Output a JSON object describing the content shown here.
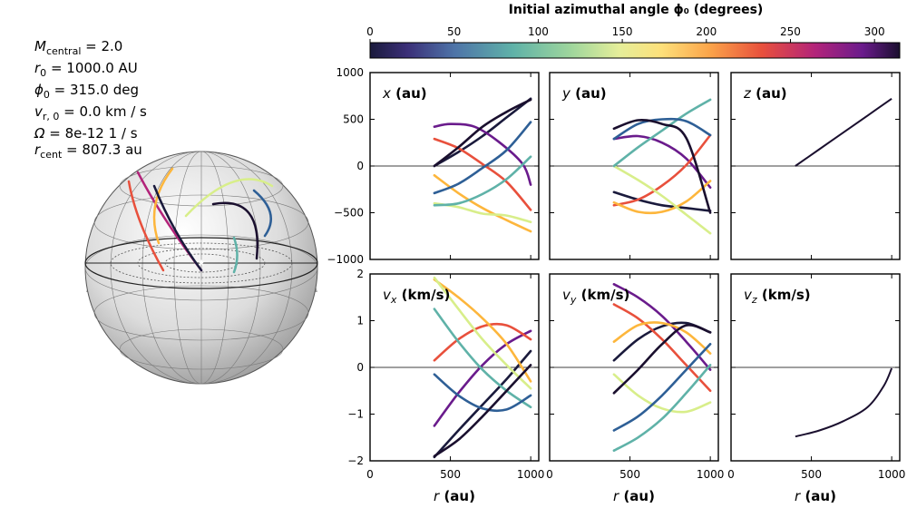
{
  "colorbar": {
    "title": "Initial azimuthal angle ϕ₀ (degrees)",
    "vmin": 0,
    "vmax": 315,
    "ticks": [
      0,
      50,
      100,
      150,
      200,
      250,
      300
    ]
  },
  "params": [
    {
      "sym": "M",
      "sub": "central",
      "rest": " = 2.0"
    },
    {
      "sym": "r",
      "sub": "0",
      "rest": " = 1000.0 AU"
    },
    {
      "sym": "ϕ",
      "sub": "0",
      "rest": " = 315.0 deg"
    },
    {
      "sym": "v",
      "sub": "r, 0",
      "rest": " = 0.0 km / s"
    },
    {
      "sym": "Ω",
      "sub": "",
      "rest": " = 8e-12 1 / s"
    },
    {
      "sym": "r",
      "sub": "cent",
      "rest": " = 807.3 au"
    }
  ],
  "xaxis": {
    "label_sym": "r",
    "label_unit": " (au)",
    "range": [
      0,
      1050
    ],
    "ticks": [
      0,
      500,
      1000
    ]
  },
  "chart_data": {
    "type": "line",
    "panels": [
      {
        "id": "x",
        "sym": "x",
        "sub": "",
        "unit": " (au)",
        "ylim": [
          -1000,
          1000
        ],
        "yticks": [
          -1000,
          -500,
          0,
          500,
          1000
        ],
        "row": 0,
        "col": 0
      },
      {
        "id": "y",
        "sym": "y",
        "sub": "",
        "unit": " (au)",
        "ylim": [
          -1000,
          1000
        ],
        "yticks": [
          -1000,
          -500,
          0,
          500,
          1000
        ],
        "row": 0,
        "col": 1
      },
      {
        "id": "z",
        "sym": "z",
        "sub": "",
        "unit": " (au)",
        "ylim": [
          -1000,
          1000
        ],
        "yticks": [
          -1000,
          -500,
          0,
          500,
          1000
        ],
        "row": 0,
        "col": 2
      },
      {
        "id": "vx",
        "sym": "v",
        "sub": "x",
        "unit": " (km/s)",
        "ylim": [
          -2,
          2
        ],
        "yticks": [
          -2,
          -1,
          0,
          1,
          2
        ],
        "row": 1,
        "col": 0
      },
      {
        "id": "vy",
        "sym": "v",
        "sub": "y",
        "unit": " (km/s)",
        "ylim": [
          -2,
          2
        ],
        "yticks": [
          -2,
          -1,
          0,
          1,
          2
        ],
        "row": 1,
        "col": 1
      },
      {
        "id": "vz",
        "sym": "v",
        "sub": "z",
        "unit": " (km/s)",
        "ylim": [
          -2,
          2
        ],
        "yticks": [
          -2,
          -1,
          0,
          1,
          2
        ],
        "row": 1,
        "col": 2
      }
    ],
    "r_range": [
      400,
      1000
    ],
    "phi0_deg": [
      0,
      45,
      90,
      135,
      180,
      225,
      270,
      315
    ],
    "series": [
      {
        "phi0": 0,
        "color": "#1a1a3c",
        "x": [
          [
            400,
            0
          ],
          [
            550,
            150
          ],
          [
            700,
            320
          ],
          [
            850,
            520
          ],
          [
            1000,
            720
          ]
        ],
        "y": [
          [
            400,
            -280
          ],
          [
            550,
            -360
          ],
          [
            700,
            -420
          ],
          [
            850,
            -450
          ],
          [
            1000,
            -480
          ]
        ],
        "vx": [
          [
            400,
            -1.92
          ],
          [
            550,
            -1.35
          ],
          [
            700,
            -0.8
          ],
          [
            850,
            -0.25
          ],
          [
            1000,
            0.35
          ]
        ],
        "vy": [
          [
            400,
            0.15
          ],
          [
            550,
            0.6
          ],
          [
            700,
            0.88
          ],
          [
            850,
            0.95
          ],
          [
            1000,
            0.75
          ]
        ]
      },
      {
        "phi0": 45,
        "color": "#6a1b8c",
        "x": [
          [
            400,
            420
          ],
          [
            500,
            450
          ],
          [
            650,
            420
          ],
          [
            800,
            260
          ],
          [
            950,
            20
          ],
          [
            1000,
            -200
          ]
        ],
        "y": [
          [
            400,
            290
          ],
          [
            550,
            320
          ],
          [
            700,
            250
          ],
          [
            850,
            80
          ],
          [
            1000,
            -230
          ]
        ],
        "vx": [
          [
            400,
            -1.25
          ],
          [
            550,
            -0.55
          ],
          [
            700,
            0.05
          ],
          [
            850,
            0.5
          ],
          [
            1000,
            0.78
          ]
        ],
        "vy": [
          [
            400,
            1.78
          ],
          [
            550,
            1.5
          ],
          [
            700,
            1.1
          ],
          [
            850,
            0.55
          ],
          [
            1000,
            -0.05
          ]
        ]
      },
      {
        "phi0": 90,
        "color": "#e8503c",
        "x": [
          [
            400,
            290
          ],
          [
            550,
            190
          ],
          [
            700,
            20
          ],
          [
            850,
            -170
          ],
          [
            1000,
            -470
          ]
        ],
        "y": [
          [
            400,
            -420
          ],
          [
            550,
            -360
          ],
          [
            700,
            -210
          ],
          [
            850,
            10
          ],
          [
            1000,
            330
          ]
        ],
        "vx": [
          [
            400,
            0.15
          ],
          [
            550,
            0.6
          ],
          [
            700,
            0.88
          ],
          [
            850,
            0.9
          ],
          [
            1000,
            0.6
          ]
        ],
        "vy": [
          [
            400,
            1.35
          ],
          [
            550,
            1.05
          ],
          [
            700,
            0.6
          ],
          [
            850,
            0.05
          ],
          [
            1000,
            -0.5
          ]
        ]
      },
      {
        "phi0": 135,
        "color": "#fdb63c",
        "x": [
          [
            400,
            -100
          ],
          [
            550,
            -290
          ],
          [
            700,
            -450
          ],
          [
            850,
            -580
          ],
          [
            1000,
            -700
          ]
        ],
        "y": [
          [
            400,
            -390
          ],
          [
            550,
            -490
          ],
          [
            700,
            -490
          ],
          [
            850,
            -380
          ],
          [
            1000,
            -160
          ]
        ],
        "vx": [
          [
            400,
            1.88
          ],
          [
            550,
            1.5
          ],
          [
            700,
            1.05
          ],
          [
            850,
            0.5
          ],
          [
            1000,
            -0.3
          ]
        ],
        "vy": [
          [
            400,
            0.55
          ],
          [
            550,
            0.9
          ],
          [
            700,
            0.95
          ],
          [
            850,
            0.75
          ],
          [
            1000,
            0.3
          ]
        ]
      },
      {
        "phi0": 180,
        "color": "#d8ee8a",
        "x": [
          [
            400,
            -400
          ],
          [
            550,
            -440
          ],
          [
            700,
            -510
          ],
          [
            850,
            -530
          ],
          [
            1000,
            -600
          ]
        ],
        "y": [
          [
            400,
            0
          ],
          [
            550,
            -150
          ],
          [
            700,
            -320
          ],
          [
            850,
            -520
          ],
          [
            1000,
            -720
          ]
        ],
        "vx": [
          [
            400,
            1.92
          ],
          [
            550,
            1.25
          ],
          [
            700,
            0.6
          ],
          [
            850,
            0.05
          ],
          [
            1000,
            -0.45
          ]
        ],
        "vy": [
          [
            400,
            -0.15
          ],
          [
            550,
            -0.6
          ],
          [
            700,
            -0.88
          ],
          [
            850,
            -0.95
          ],
          [
            1000,
            -0.75
          ]
        ]
      },
      {
        "phi0": 225,
        "color": "#5fb2a8",
        "x": [
          [
            400,
            -420
          ],
          [
            550,
            -400
          ],
          [
            700,
            -300
          ],
          [
            850,
            -140
          ],
          [
            1000,
            100
          ]
        ],
        "y": [
          [
            400,
            0
          ],
          [
            550,
            200
          ],
          [
            700,
            380
          ],
          [
            850,
            560
          ],
          [
            1000,
            710
          ]
        ],
        "vx": [
          [
            400,
            1.25
          ],
          [
            550,
            0.55
          ],
          [
            700,
            -0.05
          ],
          [
            850,
            -0.5
          ],
          [
            1000,
            -0.85
          ]
        ],
        "vy": [
          [
            400,
            -1.78
          ],
          [
            550,
            -1.5
          ],
          [
            700,
            -1.1
          ],
          [
            850,
            -0.55
          ],
          [
            1000,
            0.05
          ]
        ]
      },
      {
        "phi0": 270,
        "color": "#2e5f96",
        "x": [
          [
            400,
            -290
          ],
          [
            550,
            -190
          ],
          [
            700,
            -20
          ],
          [
            850,
            170
          ],
          [
            1000,
            470
          ]
        ],
        "y": [
          [
            400,
            290
          ],
          [
            550,
            450
          ],
          [
            700,
            500
          ],
          [
            850,
            480
          ],
          [
            1000,
            330
          ]
        ],
        "vx": [
          [
            400,
            -0.15
          ],
          [
            550,
            -0.6
          ],
          [
            700,
            -0.88
          ],
          [
            850,
            -0.9
          ],
          [
            1000,
            -0.6
          ]
        ],
        "vy": [
          [
            400,
            -1.35
          ],
          [
            550,
            -1.05
          ],
          [
            700,
            -0.6
          ],
          [
            850,
            -0.05
          ],
          [
            1000,
            0.5
          ]
        ]
      },
      {
        "phi0": 315,
        "color": "#1a0f2e",
        "x": [
          [
            400,
            0
          ],
          [
            550,
            200
          ],
          [
            700,
            420
          ],
          [
            850,
            580
          ],
          [
            1000,
            710
          ]
        ],
        "y": [
          [
            400,
            400
          ],
          [
            550,
            490
          ],
          [
            700,
            450
          ],
          [
            850,
            300
          ],
          [
            1000,
            -500
          ]
        ],
        "vx": [
          [
            400,
            -1.9
          ],
          [
            550,
            -1.55
          ],
          [
            700,
            -1.05
          ],
          [
            850,
            -0.5
          ],
          [
            1000,
            0.05
          ]
        ],
        "vy": [
          [
            400,
            -0.55
          ],
          [
            550,
            -0.05
          ],
          [
            700,
            0.5
          ],
          [
            850,
            0.9
          ],
          [
            1000,
            0.75
          ]
        ]
      }
    ],
    "z_curve": [
      [
        400,
        0
      ],
      [
        550,
        180
      ],
      [
        700,
        360
      ],
      [
        850,
        540
      ],
      [
        1000,
        720
      ]
    ],
    "vz_curve": [
      [
        400,
        -1.48
      ],
      [
        550,
        -1.35
      ],
      [
        700,
        -1.15
      ],
      [
        850,
        -0.85
      ],
      [
        950,
        -0.4
      ],
      [
        1000,
        -0.02
      ]
    ]
  }
}
